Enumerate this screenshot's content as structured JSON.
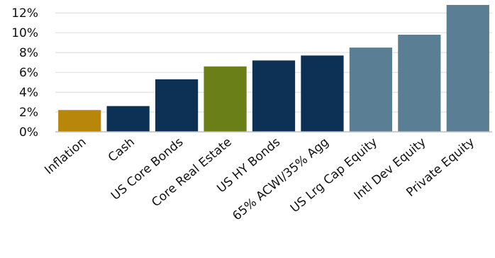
{
  "chart_data": {
    "type": "bar",
    "categories": [
      "Inflation",
      "Cash",
      "US Core Bonds",
      "Core Real Estate",
      "US HY Bonds",
      "65% ACWI/35% Agg",
      "US Lrg Cap Equity",
      "Intl Dev Equity",
      "Private Equity"
    ],
    "values": [
      2.2,
      2.6,
      5.3,
      6.6,
      7.2,
      7.7,
      8.5,
      9.8,
      12.8
    ],
    "colors": [
      "#b8860b",
      "#0c3155",
      "#0c3155",
      "#6b7f19",
      "#0c3155",
      "#0c3155",
      "#5a7f94",
      "#5a7f94",
      "#5a7f94"
    ],
    "title": "",
    "xlabel": "",
    "ylabel": "",
    "ylim": [
      0,
      12.8
    ],
    "yticks": [
      0,
      2,
      4,
      6,
      8,
      10,
      12
    ],
    "ytick_labels": [
      "0%",
      "2%",
      "4%",
      "6%",
      "8%",
      "10%",
      "12%"
    ],
    "grid": true
  }
}
